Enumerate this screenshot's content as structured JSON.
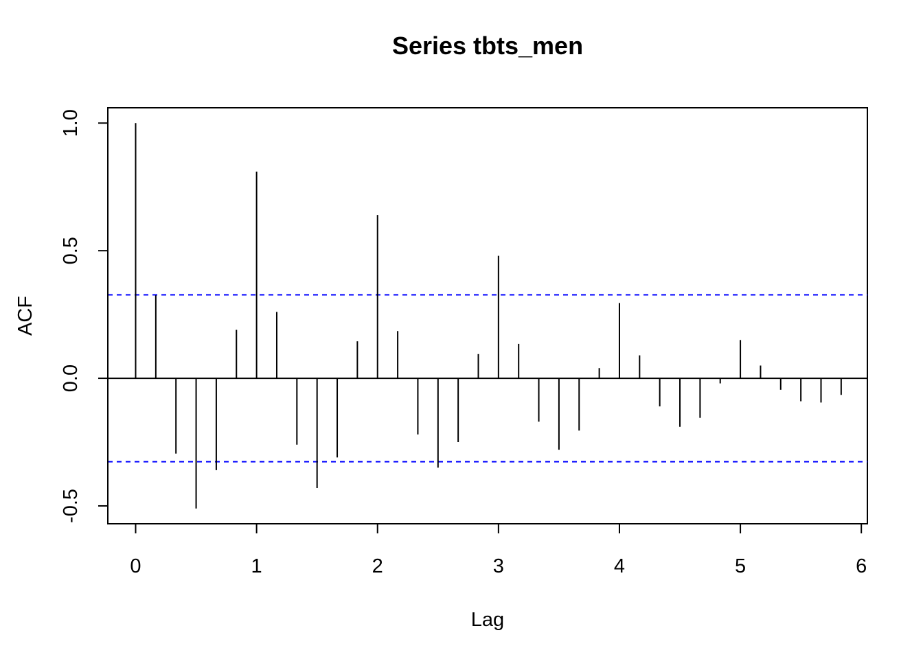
{
  "chart_data": {
    "type": "bar",
    "title": "Series  tbts_men",
    "xlabel": "Lag",
    "ylabel": "ACF",
    "xlim": [
      -0.23,
      6.05
    ],
    "ylim": [
      -0.57,
      1.06
    ],
    "x_ticks": [
      0,
      1,
      2,
      3,
      4,
      5,
      6
    ],
    "x_tick_labels": [
      "0",
      "1",
      "2",
      "3",
      "4",
      "5",
      "6"
    ],
    "y_ticks": [
      -0.5,
      0.0,
      0.5,
      1.0
    ],
    "y_tick_labels": [
      "-0.5",
      "0.0",
      "0.5",
      "1.0"
    ],
    "lags": [
      0,
      0.1667,
      0.3333,
      0.5,
      0.6667,
      0.8333,
      1,
      1.1667,
      1.3333,
      1.5,
      1.6667,
      1.8333,
      2,
      2.1667,
      2.3333,
      2.5,
      2.6667,
      2.8333,
      3,
      3.1667,
      3.3333,
      3.5,
      3.6667,
      3.8333,
      4,
      4.1667,
      4.3333,
      4.5,
      4.6667,
      4.8333,
      5,
      5.1667,
      5.3333,
      5.5,
      5.6667,
      5.8333
    ],
    "acf": [
      1.0,
      0.325,
      -0.295,
      -0.51,
      -0.36,
      0.19,
      0.81,
      0.26,
      -0.26,
      -0.43,
      -0.31,
      0.145,
      0.64,
      0.185,
      -0.22,
      -0.35,
      -0.25,
      0.095,
      0.48,
      0.135,
      -0.17,
      -0.28,
      -0.205,
      0.04,
      0.295,
      0.09,
      -0.11,
      -0.19,
      -0.155,
      -0.02,
      0.15,
      0.05,
      -0.045,
      -0.09,
      -0.095,
      -0.065
    ],
    "confidence_bound": 0.327,
    "confidence_color": "#0000ff",
    "line_color": "#000000",
    "grid": false
  }
}
